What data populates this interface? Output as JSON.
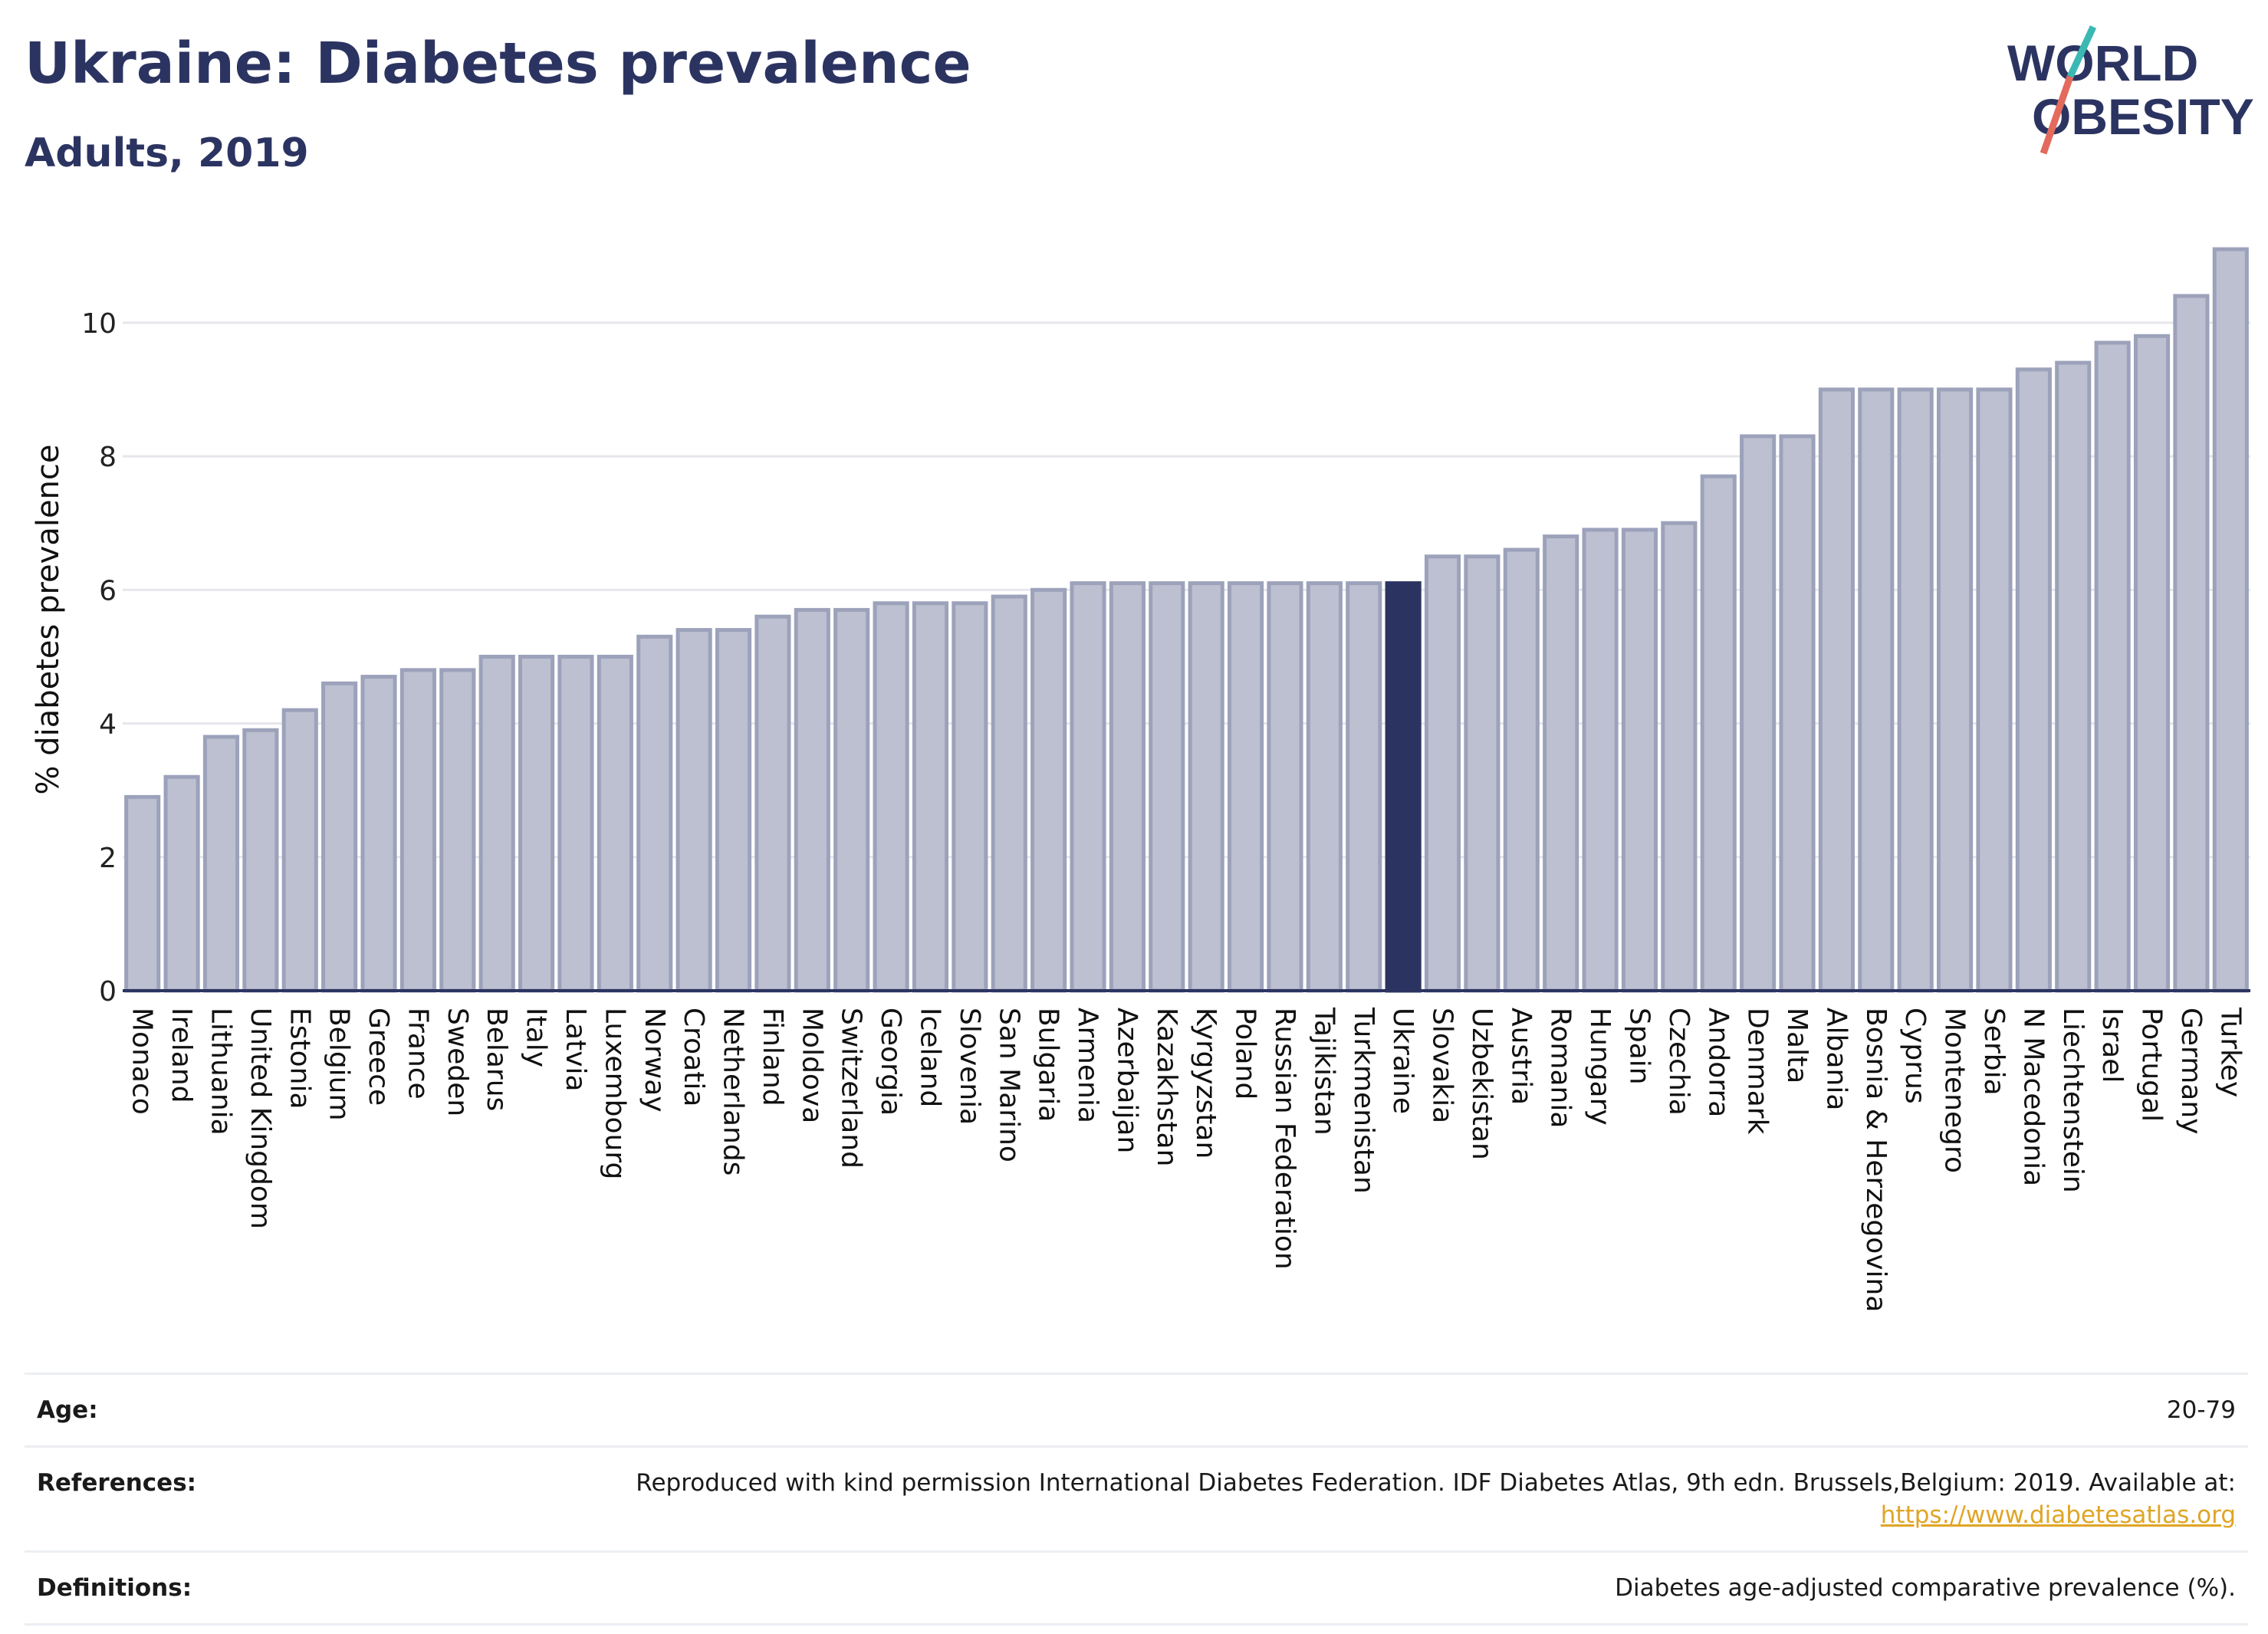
{
  "header": {
    "title": "Ukraine: Diabetes prevalence",
    "subtitle": "Adults, 2019",
    "logo_line1": "WORLD",
    "logo_line2": "OBESITY"
  },
  "colors": {
    "bar": "#bcc0d0",
    "bar_stroke": "#9da2bb",
    "highlight": "#2b3461",
    "grid": "#e6e7ec",
    "axis": "#2b3461",
    "title": "#2b3461",
    "link": "#e0a526",
    "logo_slash_teal": "#3bb8b3",
    "logo_slash_red": "#e36a5d"
  },
  "chart_data": {
    "type": "bar",
    "title": "Ukraine: Diabetes prevalence",
    "subtitle": "Adults, 2019",
    "xlabel": "",
    "ylabel": "% diabetes prevalence",
    "ylim": [
      0,
      11.1
    ],
    "yticks": [
      0,
      2,
      4,
      6,
      8,
      10
    ],
    "grid": true,
    "highlight": "Ukraine",
    "categories": [
      "Monaco",
      "Ireland",
      "Lithuania",
      "United Kingdom",
      "Estonia",
      "Belgium",
      "Greece",
      "France",
      "Sweden",
      "Belarus",
      "Italy",
      "Latvia",
      "Luxembourg",
      "Norway",
      "Croatia",
      "Netherlands",
      "Finland",
      "Moldova",
      "Switzerland",
      "Georgia",
      "Iceland",
      "Slovenia",
      "San Marino",
      "Bulgaria",
      "Armenia",
      "Azerbaijan",
      "Kazakhstan",
      "Kyrgyzstan",
      "Poland",
      "Russian Federation",
      "Tajikistan",
      "Turkmenistan",
      "Ukraine",
      "Slovakia",
      "Uzbekistan",
      "Austria",
      "Romania",
      "Hungary",
      "Spain",
      "Czechia",
      "Andorra",
      "Denmark",
      "Malta",
      "Albania",
      "Bosnia & Herzegovina",
      "Cyprus",
      "Montenegro",
      "Serbia",
      "N Macedonia",
      "Liechtenstein",
      "Israel",
      "Portugal",
      "Germany",
      "Turkey"
    ],
    "values": [
      2.9,
      3.2,
      3.8,
      3.9,
      4.2,
      4.6,
      4.7,
      4.8,
      4.8,
      5.0,
      5.0,
      5.0,
      5.0,
      5.3,
      5.4,
      5.4,
      5.6,
      5.7,
      5.7,
      5.8,
      5.8,
      5.8,
      5.9,
      6.0,
      6.1,
      6.1,
      6.1,
      6.1,
      6.1,
      6.1,
      6.1,
      6.1,
      6.1,
      6.5,
      6.5,
      6.6,
      6.8,
      6.9,
      6.9,
      7.0,
      7.7,
      8.3,
      8.3,
      9.0,
      9.0,
      9.0,
      9.0,
      9.0,
      9.3,
      9.4,
      9.7,
      9.8,
      10.4,
      11.1
    ]
  },
  "info": {
    "age_label": "Age:",
    "age_value": "20-79",
    "references_label": "References:",
    "references_value": "Reproduced with kind permission International Diabetes Federation. IDF Diabetes Atlas, 9th edn. Brussels,Belgium: 2019. Available at:",
    "references_link": "https://www.diabetesatlas.org",
    "definitions_label": "Definitions:",
    "definitions_value": "Diabetes age-adjusted comparative prevalence (%)."
  }
}
